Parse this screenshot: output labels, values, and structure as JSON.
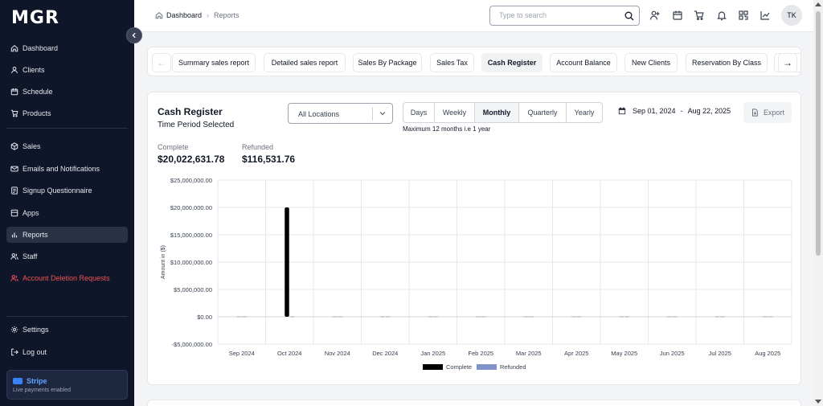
{
  "sidebar": {
    "logo": "MGR",
    "collapse_icon": "chevron-left-icon",
    "items": [
      {
        "label": "Dashboard",
        "icon": "home-icon"
      },
      {
        "label": "Clients",
        "icon": "user-icon"
      },
      {
        "label": "Schedule",
        "icon": "calendar-icon"
      },
      {
        "label": "Products",
        "icon": "cart-icon"
      },
      {
        "label": "Sales",
        "icon": "box-icon"
      },
      {
        "label": "Emails and Notifications",
        "icon": "mail-icon"
      },
      {
        "label": "Signup Questionnaire",
        "icon": "form-icon"
      },
      {
        "label": "Apps",
        "icon": "apps-icon"
      },
      {
        "label": "Reports",
        "icon": "chart-icon",
        "active": true
      },
      {
        "label": "Staff",
        "icon": "users-icon"
      },
      {
        "label": "Account Deletion Requests",
        "icon": "user-x-icon",
        "danger": true
      }
    ],
    "bottom_items": [
      {
        "label": "Settings",
        "icon": "gear-icon"
      },
      {
        "label": "Log out",
        "icon": "logout-icon"
      }
    ],
    "stripe": {
      "name": "Stripe",
      "status": "Live payments enabled"
    }
  },
  "header": {
    "breadcrumb": [
      "Dashboard",
      "Reports"
    ],
    "search_placeholder": "Type to search",
    "avatar_initials": "TK",
    "icons": [
      "add-user-icon",
      "calendar-icon",
      "cart-icon",
      "bell-icon",
      "qr-icon",
      "trend-icon"
    ]
  },
  "tabs": [
    "Summary sales report",
    "Detailed sales report",
    "Sales By Package",
    "Sales Tax",
    "Cash Register",
    "Account Balance",
    "New Clients",
    "Reservation By Class",
    ""
  ],
  "active_tab": "Cash Register",
  "report": {
    "title": "Cash Register",
    "subtitle": "Time Period Selected",
    "location": "All Locations",
    "periods": [
      "Days",
      "Weekly",
      "Monthly",
      "Quarterly",
      "Yearly"
    ],
    "active_period": "Monthly",
    "period_note": "Maximum 12 months i.e 1 year",
    "date_start": "Sep 01, 2024",
    "date_sep": "-",
    "date_end": "Aug 22, 2025",
    "export_label": "Export",
    "stats": [
      {
        "label": "Complete",
        "value": "$20,022,631.78"
      },
      {
        "label": "Refunded",
        "value": "$116,531.76"
      }
    ]
  },
  "chart_data": {
    "type": "bar",
    "categories": [
      "Sep 2024",
      "Oct 2024",
      "Nov 2024",
      "Dec 2024",
      "Jan 2025",
      "Feb 2025",
      "Mar 2025",
      "Apr 2025",
      "May 2025",
      "Jun 2025",
      "Jul 2025",
      "Aug 2025"
    ],
    "series": [
      {
        "name": "Complete",
        "color": "#000000",
        "values": [
          0,
          20000000,
          0,
          0,
          0,
          0,
          0,
          0,
          0,
          0,
          0,
          0
        ]
      },
      {
        "name": "Refunded",
        "color": "#7f93c9",
        "values": [
          0,
          0,
          0,
          0,
          0,
          0,
          0,
          0,
          0,
          0,
          0,
          0
        ]
      }
    ],
    "ylabel": "Amount in ($)",
    "ylim": [
      -5000000,
      25000000
    ],
    "yticks": [
      -5000000,
      0,
      5000000,
      10000000,
      15000000,
      20000000,
      25000000
    ],
    "ytick_labels": [
      "-$5,000,000.00",
      "$0.00",
      "$5,000,000.00",
      "$10,000,000.00",
      "$15,000,000.00",
      "$20,000,000.00",
      "$25,000,000.00"
    ],
    "grid": true,
    "legend": "bottom"
  }
}
